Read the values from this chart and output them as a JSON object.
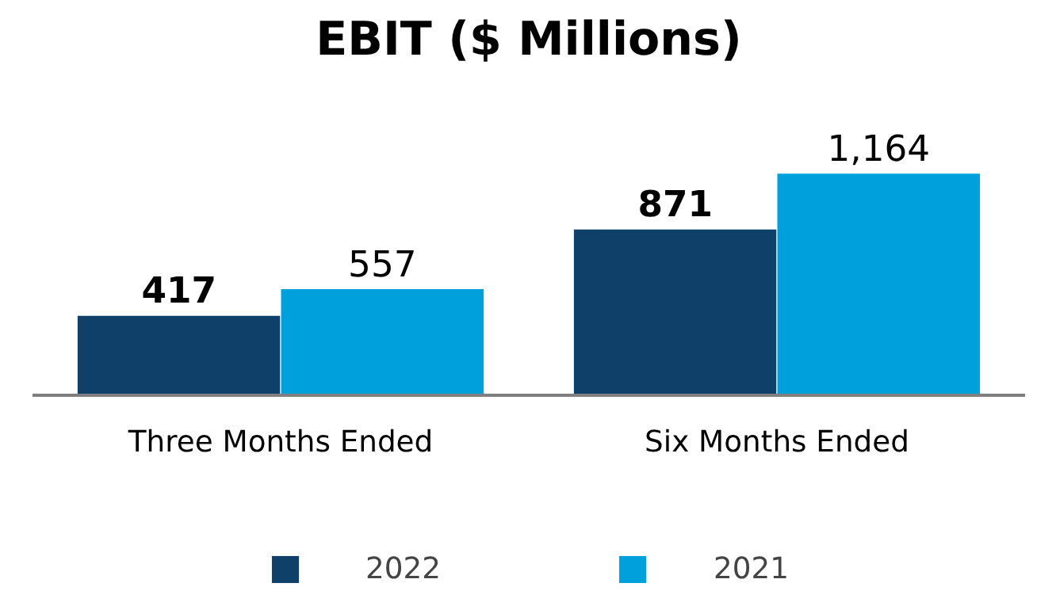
{
  "chart_data": {
    "type": "bar",
    "title": "EBIT ($ Millions)",
    "categories": [
      "Three Months Ended",
      "Six Months Ended"
    ],
    "series": [
      {
        "name": "2022",
        "color": "#0e406a",
        "values": [
          417,
          871
        ],
        "value_labels": [
          "417",
          "871"
        ]
      },
      {
        "name": "2021",
        "color": "#00a0dc",
        "values": [
          557,
          1164
        ],
        "value_labels": [
          "557",
          "1,164"
        ]
      }
    ],
    "legend": "bottom"
  }
}
